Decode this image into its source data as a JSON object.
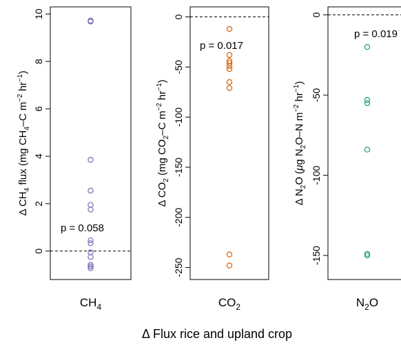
{
  "figure": {
    "xlabel": "Δ Flux rice and upland crop"
  },
  "chart_data": [
    {
      "type": "scatter",
      "gas_label_main": "CH",
      "gas_label_sub": "4",
      "ylabel": "Δ CH4 flux (mg CH4–C m⁻² hr⁻¹)",
      "ylabel_parts": {
        "a": "Δ CH",
        "b": "4",
        "c": " flux (mg CH",
        "d": "4",
        "e": "–C m",
        "f": "−2",
        "g": " hr",
        "h": "−1",
        "i": ")"
      },
      "ylim": [
        -1.2,
        10.3
      ],
      "yticks": [
        0,
        2,
        4,
        6,
        8,
        10
      ],
      "yticklabels": [
        "0",
        "2",
        "4",
        "6",
        "8",
        "10"
      ],
      "reference_line": 0,
      "p_value": "p = 0.058",
      "color": "#7570b3",
      "values": [
        9.72,
        9.68,
        3.85,
        2.55,
        1.95,
        1.75,
        0.45,
        0.33,
        -0.05,
        -0.25,
        -0.58,
        -0.65,
        -0.72
      ]
    },
    {
      "type": "scatter",
      "gas_label_main": "CO",
      "gas_label_sub": "2",
      "ylabel": "Δ CO2 (mg CO2–C m⁻² hr⁻¹)",
      "ylabel_parts": {
        "a": "Δ CO",
        "b": "2",
        "c": " (mg CO",
        "d": "2",
        "e": "–C m",
        "f": "−2",
        "g": " hr",
        "h": "−1",
        "i": ")"
      },
      "ylim": [
        -262,
        10
      ],
      "yticks": [
        0,
        -50,
        -100,
        -150,
        -200,
        -250
      ],
      "yticklabels": [
        "0",
        "-50",
        "-100",
        "-150",
        "-200",
        "-250"
      ],
      "reference_line": 0,
      "p_value": "p = 0.017",
      "color": "#d95f02",
      "values": [
        -12,
        -38,
        -44,
        -46,
        -49,
        -52,
        -65,
        -71,
        -237,
        -248
      ]
    },
    {
      "type": "scatter",
      "gas_label_main": "N",
      "gas_label_sub": "2",
      "gas_label_tail": "O",
      "ylabel": "Δ N2O (μg N2O–N m⁻² hr⁻¹)",
      "ylabel_parts": {
        "a": "Δ N",
        "b": "2",
        "c": "O (",
        "c2": "μ",
        "c3": "g N",
        "d": "2",
        "e": "O–N m",
        "f": "−2",
        "g": " hr",
        "h": "−1",
        "i": ")"
      },
      "ylim": [
        -165,
        5
      ],
      "yticks": [
        0,
        -50,
        -100,
        -150
      ],
      "yticklabels": [
        "0",
        "-50",
        "-100",
        "-150"
      ],
      "reference_line": 0,
      "p_value": "p = 0.019",
      "color": "#1b9e77",
      "values": [
        -20,
        -53,
        -55,
        -84,
        -149,
        -150
      ]
    }
  ]
}
